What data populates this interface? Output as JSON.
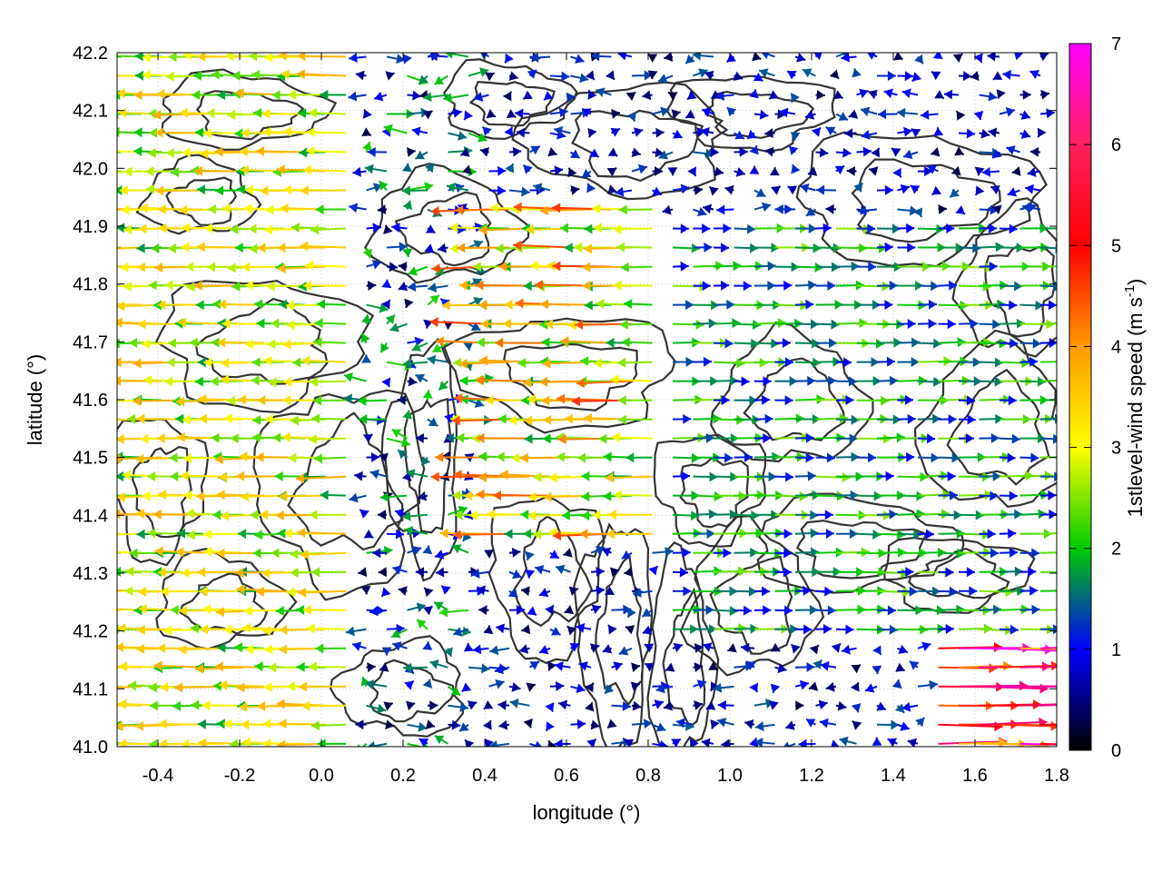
{
  "chart_data": {
    "type": "quiver",
    "xlabel": "longitude (°)",
    "ylabel": "latitude (°)",
    "xlim": [
      -0.5,
      1.8
    ],
    "ylim": [
      41.0,
      42.2
    ],
    "x_ticks": [
      "-0.4",
      "-0.2",
      "0.0",
      "0.2",
      "0.4",
      "0.6",
      "0.8",
      "1.0",
      "1.2",
      "1.4",
      "1.6",
      "1.8"
    ],
    "y_ticks": [
      "41.0",
      "41.1",
      "41.2",
      "41.3",
      "41.4",
      "41.5",
      "41.6",
      "41.7",
      "41.8",
      "41.9",
      "42.0",
      "42.1",
      "42.2"
    ],
    "grid": true,
    "colorbar": {
      "label": "1stlevel-wind speed (m s-1)",
      "label_main": "1stlevel-wind speed (m s",
      "label_sup": "-1",
      "label_end": ")",
      "min": 0,
      "max": 7,
      "ticks": [
        "0",
        "1",
        "2",
        "3",
        "4",
        "5",
        "6",
        "7"
      ],
      "colors": [
        "#000000",
        "#0000ff",
        "#00cc00",
        "#ffff00",
        "#ff9900",
        "#ff0000",
        "#ff00ff"
      ]
    },
    "contour_color": "#333333",
    "wind_regions": [
      {
        "lon": [
          -0.5,
          0.1
        ],
        "lat": [
          41.0,
          42.2
        ],
        "direction": "west",
        "speed": [
          2.0,
          4.5
        ]
      },
      {
        "lon": [
          0.1,
          0.4
        ],
        "lat": [
          41.0,
          42.2
        ],
        "direction": "variable",
        "speed": [
          0.3,
          2.5
        ]
      },
      {
        "lon": [
          0.4,
          0.85
        ],
        "lat": [
          41.35,
          41.95
        ],
        "direction": "west",
        "speed": [
          2.0,
          5.5
        ]
      },
      {
        "lon": [
          0.85,
          1.8
        ],
        "lat": [
          41.2,
          41.9
        ],
        "direction": "east",
        "speed": [
          1.0,
          3.0
        ]
      },
      {
        "lon": [
          1.5,
          1.8
        ],
        "lat": [
          41.0,
          41.2
        ],
        "direction": "east",
        "speed": [
          4.0,
          7.0
        ]
      }
    ]
  }
}
